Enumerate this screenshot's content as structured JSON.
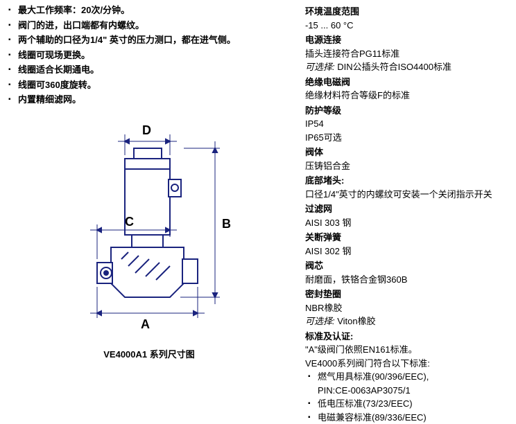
{
  "leftBullets": [
    "最大工作频率：20次/分钟。",
    "阀门的进，出口端都有内螺纹。",
    "两个辅助的口径为1/4\" 英寸的压力测口，都在进气侧。",
    "线圈可现场更换。",
    "线圈适合长期通电。",
    "线圈可360度旋转。",
    "内置精细滤网。"
  ],
  "diagram": {
    "caption": "VE4000A1 系列尺寸图",
    "labels": {
      "A": "A",
      "B": "B",
      "C": "C",
      "D": "D"
    },
    "stroke": "#1a237e",
    "fill": "#ffffff"
  },
  "specs": [
    {
      "h": "环境温度范围",
      "v": [
        "-15 ... 60 °C"
      ]
    },
    {
      "h": "电源连接",
      "v": [
        "插头连接符合PG11标准",
        {
          "italic": true,
          "text": "可选择:",
          "after": " DIN公插头符合ISO4400标准"
        }
      ]
    },
    {
      "h": "绝缘电磁阀",
      "v": [
        "绝缘材料符合等级F的标准"
      ]
    },
    {
      "h": "防护等级",
      "v": [
        "IP54",
        "IP65可选"
      ]
    },
    {
      "h": "阀体",
      "v": [
        "压铸铝合金"
      ]
    },
    {
      "h": "底部堵头:",
      "v": [
        "口径1/4\"英寸的内螺纹可安装一个关闭指示开关"
      ]
    },
    {
      "h": "过滤网",
      "v": [
        "AISI 303 钢"
      ]
    },
    {
      "h": "关断弹簧",
      "v": [
        "AISI 302 钢"
      ]
    },
    {
      "h": "阀芯",
      "v": [
        "耐磨面，铁铬合金钢360B"
      ]
    },
    {
      "h": "密封垫圈",
      "v": [
        "NBR橡胶",
        {
          "italic": true,
          "text": "可选择:",
          "after": " Viton橡胶"
        }
      ]
    },
    {
      "h": "标准及认证:",
      "v": [
        "\"A\"级阀门依照EN161标准。",
        "VE4000系列阀门符合以下标准:"
      ]
    }
  ],
  "standardsBullets": [
    "燃气用具标准(90/396/EEC),",
    "PIN:CE-0063AP3075/1",
    "低电压标准(73/23/EEC)",
    "电磁兼容标准(89/336/EEC)"
  ]
}
